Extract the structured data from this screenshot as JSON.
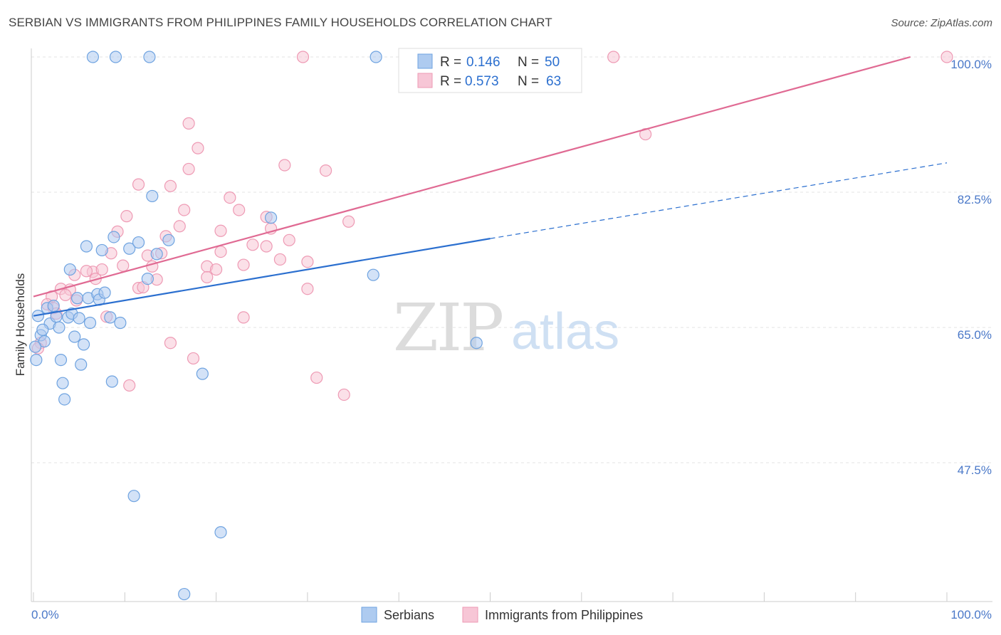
{
  "chart_data": {
    "type": "scatter",
    "title": "SERBIAN VS IMMIGRANTS FROM PHILIPPINES FAMILY HOUSEHOLDS CORRELATION CHART",
    "source": "Source: ZipAtlas.com",
    "xlabel": "",
    "ylabel": "Family Households",
    "xlim": [
      0,
      100
    ],
    "ylim": [
      30,
      100
    ],
    "x_tick_labels": {
      "left": "0.0%",
      "right": "100.0%"
    },
    "y_ticks": [
      {
        "value": 100,
        "label": "100.0%"
      },
      {
        "value": 82.5,
        "label": "82.5%"
      },
      {
        "value": 65,
        "label": "65.0%"
      },
      {
        "value": 47.5,
        "label": "47.5%"
      }
    ],
    "grid": true,
    "watermark": {
      "zip": "ZIP",
      "atlas": "atlas"
    },
    "legend": {
      "placement": "top-center",
      "rows": [
        {
          "r_label": "R =",
          "r_value": "0.146",
          "n_label": "N =",
          "n_value": "50"
        },
        {
          "r_label": "R =",
          "r_value": "0.573",
          "n_label": "N =",
          "n_value": "63"
        }
      ]
    },
    "series": [
      {
        "name": "Serbians",
        "color": "#6fa3e0",
        "fill": "#aecbf0",
        "line_color": "#2b6fcf",
        "trend": {
          "x0": 0,
          "y0": 66.5,
          "x1": 50,
          "y1": 76.5,
          "dash_x1": 100,
          "dash_y1": 86.3
        },
        "points": [
          [
            6.5,
            100
          ],
          [
            9,
            100
          ],
          [
            12.7,
            100
          ],
          [
            37.5,
            100
          ],
          [
            0.5,
            66.5
          ],
          [
            0.8,
            64
          ],
          [
            1.2,
            63.2
          ],
          [
            1.5,
            67.5
          ],
          [
            1.8,
            65.5
          ],
          [
            2.2,
            67.8
          ],
          [
            2.5,
            66.4
          ],
          [
            2.8,
            65.0
          ],
          [
            3.0,
            60.8
          ],
          [
            3.2,
            57.8
          ],
          [
            3.4,
            55.7
          ],
          [
            3.8,
            66.3
          ],
          [
            4.0,
            72.5
          ],
          [
            4.2,
            66.8
          ],
          [
            4.5,
            63.8
          ],
          [
            4.8,
            68.8
          ],
          [
            5.0,
            66.2
          ],
          [
            5.2,
            60.2
          ],
          [
            5.5,
            62.8
          ],
          [
            5.8,
            75.5
          ],
          [
            6.0,
            68.8
          ],
          [
            6.2,
            65.6
          ],
          [
            7.0,
            69.3
          ],
          [
            7.2,
            68.6
          ],
          [
            7.5,
            75.0
          ],
          [
            7.8,
            69.5
          ],
          [
            8.4,
            66.3
          ],
          [
            8.6,
            58.0
          ],
          [
            8.8,
            76.7
          ],
          [
            9.5,
            65.6
          ],
          [
            10.5,
            75.2
          ],
          [
            11.5,
            76.0
          ],
          [
            12.5,
            71.3
          ],
          [
            13.0,
            82.0
          ],
          [
            13.5,
            74.5
          ],
          [
            14.8,
            76.3
          ],
          [
            18.5,
            59.0
          ],
          [
            26.0,
            79.2
          ],
          [
            37.2,
            71.8
          ],
          [
            48.5,
            63.0
          ],
          [
            0.3,
            60.8
          ],
          [
            0.2,
            62.5
          ],
          [
            11,
            43.2
          ],
          [
            20.5,
            38.5
          ],
          [
            16.5,
            30.5
          ],
          [
            1.0,
            64.7
          ]
        ]
      },
      {
        "name": "Immigrants from Philippines",
        "color": "#ee9ab4",
        "fill": "#f7c6d6",
        "line_color": "#e06a93",
        "trend": {
          "x0": 0,
          "y0": 69.0,
          "x1": 96,
          "y1": 100
        },
        "points": [
          [
            29.5,
            100
          ],
          [
            63.5,
            100
          ],
          [
            100,
            100
          ],
          [
            67,
            90.0
          ],
          [
            17,
            91.4
          ],
          [
            18,
            88.2
          ],
          [
            27.5,
            86.0
          ],
          [
            32,
            85.3
          ],
          [
            17,
            85.5
          ],
          [
            11.5,
            83.5
          ],
          [
            15,
            83.3
          ],
          [
            21.5,
            81.8
          ],
          [
            16.5,
            80.2
          ],
          [
            22.5,
            80.2
          ],
          [
            25.5,
            79.3
          ],
          [
            10.2,
            79.4
          ],
          [
            34.5,
            78.7
          ],
          [
            9.2,
            77.4
          ],
          [
            16,
            78.1
          ],
          [
            20.5,
            77.5
          ],
          [
            26,
            77.8
          ],
          [
            14.5,
            76.8
          ],
          [
            28,
            76.3
          ],
          [
            25.5,
            75.5
          ],
          [
            24,
            75.7
          ],
          [
            8.5,
            74.6
          ],
          [
            12.5,
            74.3
          ],
          [
            14,
            74.6
          ],
          [
            20.5,
            74.8
          ],
          [
            6.5,
            72.2
          ],
          [
            7.5,
            72.5
          ],
          [
            9.8,
            73.0
          ],
          [
            13,
            72.9
          ],
          [
            19,
            72.9
          ],
          [
            20,
            72.5
          ],
          [
            23,
            73.1
          ],
          [
            27,
            73.8
          ],
          [
            30,
            73.5
          ],
          [
            4.5,
            71.8
          ],
          [
            5.8,
            72.3
          ],
          [
            6.8,
            71.3
          ],
          [
            13.5,
            71.2
          ],
          [
            19,
            71.5
          ],
          [
            3.0,
            70.0
          ],
          [
            4.0,
            69.9
          ],
          [
            11.5,
            70.1
          ],
          [
            12,
            70.2
          ],
          [
            30,
            70.0
          ],
          [
            2.0,
            69.0
          ],
          [
            3.5,
            69.2
          ],
          [
            1.5,
            68.0
          ],
          [
            2.2,
            67.5
          ],
          [
            4.7,
            68.5
          ],
          [
            2.5,
            66.8
          ],
          [
            8.0,
            66.4
          ],
          [
            23,
            66.3
          ],
          [
            15,
            63.0
          ],
          [
            17.5,
            61.0
          ],
          [
            31,
            58.5
          ],
          [
            10.5,
            57.5
          ],
          [
            34,
            56.3
          ],
          [
            0.8,
            63.0
          ],
          [
            0.5,
            62.3
          ]
        ]
      }
    ]
  }
}
